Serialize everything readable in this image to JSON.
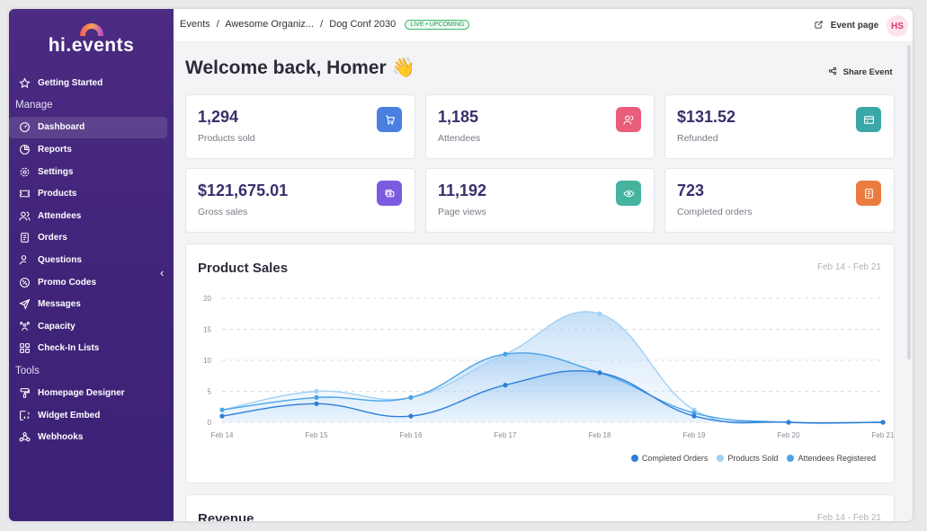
{
  "brand": {
    "logo_text": "hi.events"
  },
  "sidebar": {
    "items_top": [
      {
        "label": "Getting Started",
        "icon": "star-icon"
      }
    ],
    "manage_heading": "Manage",
    "manage_items": [
      {
        "label": "Dashboard",
        "icon": "gauge-icon",
        "active": true
      },
      {
        "label": "Reports",
        "icon": "chart-icon"
      },
      {
        "label": "Settings",
        "icon": "gear-icon"
      },
      {
        "label": "Products",
        "icon": "ticket-icon"
      },
      {
        "label": "Attendees",
        "icon": "users-icon"
      },
      {
        "label": "Orders",
        "icon": "receipt-icon"
      },
      {
        "label": "Questions",
        "icon": "user-question-icon"
      },
      {
        "label": "Promo Codes",
        "icon": "discount-icon"
      },
      {
        "label": "Messages",
        "icon": "send-icon"
      },
      {
        "label": "Capacity",
        "icon": "users-group-icon"
      },
      {
        "label": "Check-In Lists",
        "icon": "qrcode-icon"
      }
    ],
    "tools_heading": "Tools",
    "tools_items": [
      {
        "label": "Homepage Designer",
        "icon": "paint-icon"
      },
      {
        "label": "Widget Embed",
        "icon": "code-icon"
      },
      {
        "label": "Webhooks",
        "icon": "webhook-icon"
      }
    ],
    "collapse_glyph": "‹"
  },
  "topbar": {
    "crumbs": [
      "Events",
      "Awesome Organiz...",
      "Dog Conf 2030"
    ],
    "separator": "/",
    "status_badge": "LIVE • UPCOMING",
    "event_page_label": "Event page",
    "avatar_initials": "HS"
  },
  "header": {
    "welcome": "Welcome back, Homer 👋",
    "share_label": "Share Event"
  },
  "stats": [
    {
      "value": "1,294",
      "label": "Products sold",
      "color": "#4a7fe0",
      "icon": "cart-icon"
    },
    {
      "value": "1,185",
      "label": "Attendees",
      "color": "#e85d7a",
      "icon": "users-icon"
    },
    {
      "value": "$131.52",
      "label": "Refunded",
      "color": "#3aa8a8",
      "icon": "refund-icon"
    },
    {
      "value": "$121,675.01",
      "label": "Gross sales",
      "color": "#7b5ce0",
      "icon": "cash-icon"
    },
    {
      "value": "11,192",
      "label": "Page views",
      "color": "#45b39d",
      "icon": "eye-icon"
    },
    {
      "value": "723",
      "label": "Completed orders",
      "color": "#ec7b3f",
      "icon": "order-icon"
    }
  ],
  "product_sales": {
    "title": "Product Sales",
    "range": "Feb 14 - Feb 21"
  },
  "revenue": {
    "title": "Revenue",
    "range": "Feb 14 - Feb 21"
  },
  "chart_data": {
    "type": "area",
    "title": "Product Sales",
    "categories": [
      "Feb 14",
      "Feb 15",
      "Feb 16",
      "Feb 17",
      "Feb 18",
      "Feb 19",
      "Feb 20",
      "Feb 21"
    ],
    "series": [
      {
        "name": "Completed Orders",
        "color": "#2f7ed8",
        "values": [
          1,
          3,
          1,
          6,
          8,
          1,
          0,
          0
        ]
      },
      {
        "name": "Products Sold",
        "color": "#9fd0f5",
        "values": [
          2,
          5,
          4,
          11,
          17.5,
          2,
          0,
          0
        ]
      },
      {
        "name": "Attendees Registered",
        "color": "#4aa3e8",
        "values": [
          2,
          4,
          4,
          11,
          8,
          1.5,
          0,
          0
        ]
      }
    ],
    "yticks": [
      0,
      5,
      10,
      15,
      20
    ],
    "ylim": [
      0,
      20
    ],
    "grid": true,
    "legend": "bottom-right"
  }
}
